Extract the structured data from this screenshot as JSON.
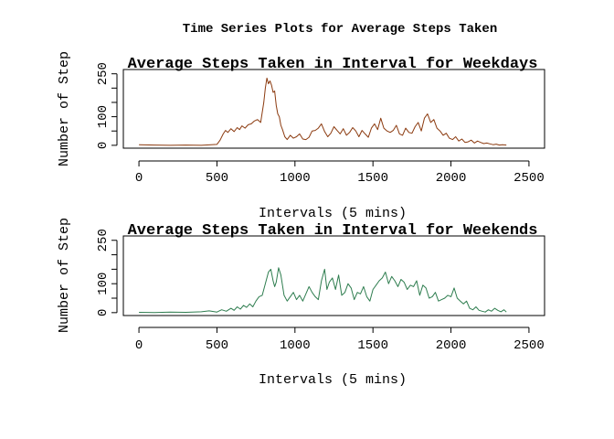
{
  "figure": {
    "title": "Time Series Plots for Average Steps Taken"
  },
  "chart_data": [
    {
      "type": "line",
      "title": "Average Steps Taken in Interval for Weekdays",
      "xlabel": "Intervals (5 mins)",
      "ylabel": "Number of Step",
      "xlim": [
        -100,
        2600
      ],
      "ylim": [
        -10,
        265
      ],
      "xticks": [
        0,
        500,
        1000,
        1500,
        2000,
        2500
      ],
      "yticks": [
        0,
        50,
        100,
        150,
        200,
        250
      ],
      "ytick_labels": [
        "0",
        "",
        "100",
        "",
        "",
        "250"
      ],
      "color": "#8B3A0F",
      "series": [
        {
          "x": [
            0,
            100,
            200,
            300,
            400,
            500,
            520,
            540,
            555,
            570,
            590,
            610,
            630,
            645,
            660,
            680,
            700,
            720,
            740,
            760,
            780,
            800,
            810,
            820,
            830,
            840,
            850,
            860,
            870,
            880,
            890,
            900,
            910,
            920,
            935,
            950,
            970,
            990,
            1010,
            1030,
            1050,
            1070,
            1090,
            1110,
            1130,
            1150,
            1170,
            1190,
            1210,
            1230,
            1250,
            1270,
            1290,
            1310,
            1330,
            1350,
            1370,
            1390,
            1410,
            1430,
            1450,
            1470,
            1490,
            1510,
            1530,
            1550,
            1570,
            1590,
            1610,
            1630,
            1650,
            1670,
            1690,
            1710,
            1730,
            1750,
            1770,
            1790,
            1810,
            1830,
            1850,
            1870,
            1890,
            1910,
            1930,
            1950,
            1970,
            1990,
            2010,
            2030,
            2050,
            2070,
            2090,
            2110,
            2130,
            2150,
            2170,
            2190,
            2210,
            2230,
            2250,
            2270,
            2290,
            2310,
            2330,
            2355
          ],
          "values": [
            2,
            1,
            0,
            1,
            0,
            3,
            18,
            40,
            52,
            45,
            58,
            48,
            62,
            55,
            68,
            60,
            72,
            75,
            85,
            90,
            80,
            150,
            200,
            235,
            215,
            225,
            210,
            185,
            190,
            140,
            110,
            100,
            70,
            55,
            30,
            20,
            35,
            25,
            30,
            40,
            22,
            20,
            28,
            50,
            52,
            60,
            75,
            48,
            30,
            42,
            65,
            52,
            40,
            58,
            35,
            45,
            62,
            50,
            30,
            52,
            40,
            28,
            60,
            75,
            55,
            95,
            60,
            50,
            45,
            52,
            70,
            40,
            35,
            60,
            45,
            42,
            65,
            80,
            50,
            95,
            110,
            80,
            90,
            60,
            50,
            35,
            42,
            25,
            20,
            30,
            15,
            22,
            10,
            12,
            18,
            8,
            15,
            10,
            6,
            8,
            5,
            2,
            4,
            1,
            2,
            1
          ]
        }
      ]
    },
    {
      "type": "line",
      "title": "Average Steps Taken in Interval for Weekends",
      "xlabel": "Intervals (5 mins)",
      "ylabel": "Number of Step",
      "xlim": [
        -100,
        2600
      ],
      "ylim": [
        -10,
        265
      ],
      "xticks": [
        0,
        500,
        1000,
        1500,
        2000,
        2500
      ],
      "yticks": [
        0,
        50,
        100,
        150,
        200,
        250
      ],
      "ytick_labels": [
        "0",
        "",
        "100",
        "",
        "",
        "250"
      ],
      "color": "#2E7D4F",
      "series": [
        {
          "x": [
            0,
            100,
            200,
            300,
            400,
            450,
            500,
            530,
            560,
            590,
            610,
            630,
            650,
            670,
            690,
            710,
            730,
            750,
            770,
            790,
            810,
            830,
            845,
            860,
            870,
            880,
            895,
            910,
            930,
            950,
            970,
            990,
            1010,
            1030,
            1050,
            1070,
            1090,
            1110,
            1130,
            1150,
            1170,
            1190,
            1205,
            1220,
            1240,
            1260,
            1280,
            1300,
            1320,
            1340,
            1360,
            1380,
            1400,
            1420,
            1440,
            1460,
            1480,
            1500,
            1520,
            1540,
            1560,
            1580,
            1600,
            1620,
            1640,
            1660,
            1680,
            1700,
            1720,
            1740,
            1760,
            1780,
            1800,
            1820,
            1840,
            1860,
            1880,
            1900,
            1920,
            1940,
            1960,
            1980,
            2000,
            2020,
            2040,
            2060,
            2080,
            2100,
            2120,
            2140,
            2160,
            2180,
            2200,
            2220,
            2240,
            2260,
            2280,
            2300,
            2320,
            2340,
            2355
          ],
          "values": [
            1,
            0,
            2,
            1,
            3,
            6,
            2,
            10,
            5,
            15,
            8,
            20,
            12,
            25,
            18,
            30,
            20,
            40,
            55,
            60,
            100,
            140,
            150,
            110,
            90,
            105,
            155,
            130,
            60,
            40,
            55,
            70,
            45,
            60,
            40,
            65,
            90,
            70,
            55,
            45,
            110,
            150,
            80,
            105,
            120,
            80,
            130,
            60,
            70,
            100,
            85,
            45,
            70,
            65,
            90,
            55,
            40,
            80,
            95,
            110,
            120,
            140,
            100,
            125,
            110,
            90,
            115,
            105,
            80,
            95,
            90,
            110,
            60,
            95,
            85,
            50,
            55,
            70,
            40,
            45,
            50,
            60,
            55,
            85,
            50,
            40,
            30,
            40,
            15,
            10,
            20,
            8,
            5,
            2,
            10,
            5,
            15,
            8,
            3,
            10,
            2
          ]
        }
      ]
    }
  ]
}
